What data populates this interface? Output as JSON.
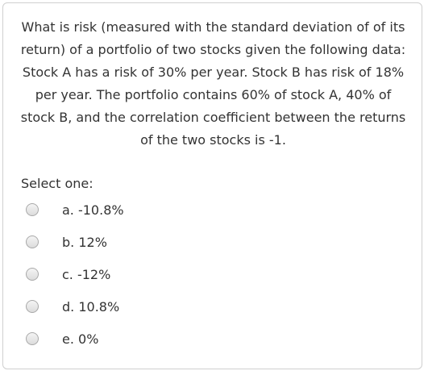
{
  "question": {
    "text": "What is risk (measured with the standard deviation of of its return) of a portfolio of two stocks given the following data: Stock A has a risk of 30% per year. Stock B has risk of 18% per year. The portfolio contains 60% of stock A, 40% of stock B, and the correlation coefficient between the returns of the two stocks is -1."
  },
  "prompt": "Select one:",
  "options": [
    {
      "label": "a. -10.8%"
    },
    {
      "label": "b. 12%"
    },
    {
      "label": "c. -12%"
    },
    {
      "label": "d. 10.8%"
    },
    {
      "label": "e. 0%"
    }
  ]
}
